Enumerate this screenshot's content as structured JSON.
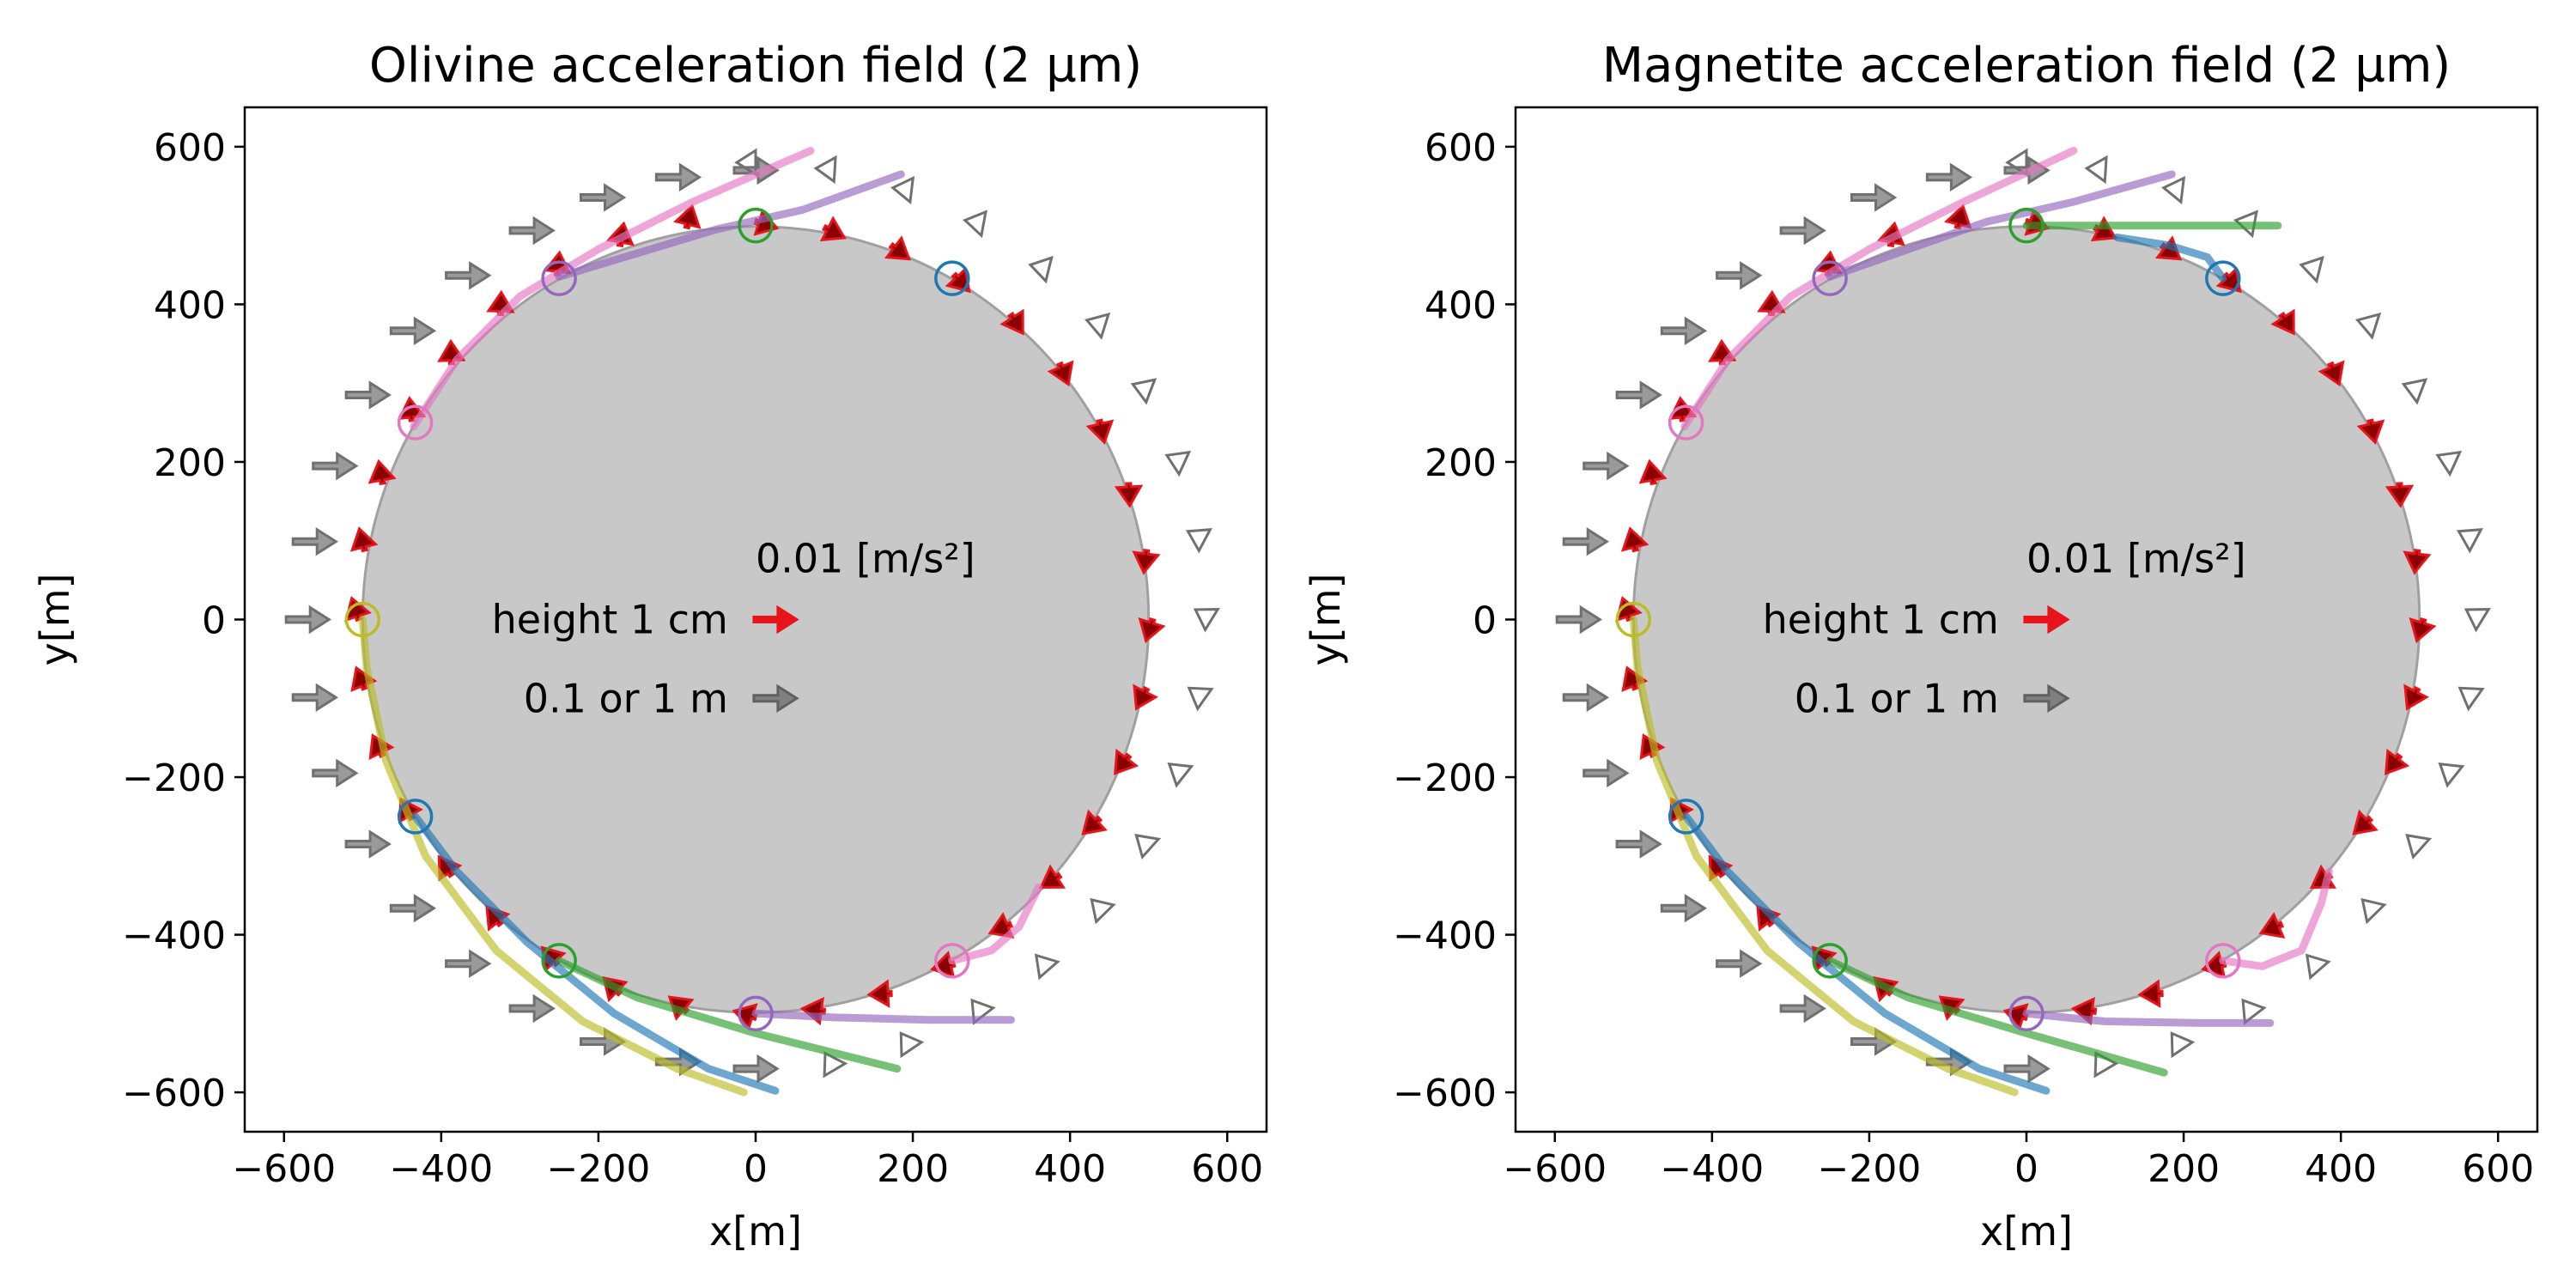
{
  "chart_data": [
    {
      "type": "vector-field",
      "title": "Olivine acceleration field (2 µm)",
      "xlabel": "x[m]",
      "ylabel": "y[m]",
      "xlim": [
        -650,
        650
      ],
      "ylim": [
        -650,
        650
      ],
      "xticks": [
        "−600",
        "−400",
        "−200",
        "0",
        "200",
        "400",
        "600"
      ],
      "yticks": [
        "600",
        "400",
        "200",
        "0",
        "−200",
        "−400",
        "−600"
      ],
      "body": {
        "shape": "circle",
        "center": [
          0,
          0
        ],
        "radius": 500,
        "color": "#c8c8c8"
      },
      "legend": {
        "scale_label": "0.01 [m/s²]",
        "entries": [
          {
            "label": "height 1 cm",
            "color": "#e8141c"
          },
          {
            "label": "0.1 or 1 m",
            "color": "#808080"
          }
        ]
      },
      "trajectories": [
        {
          "color": "#e377c2",
          "points": [
            [
              -435,
              245
            ],
            [
              -380,
              330
            ],
            [
              -300,
              410
            ],
            [
              -200,
              470
            ],
            [
              -80,
              530
            ],
            [
              70,
              595
            ]
          ]
        },
        {
          "color": "#9467bd",
          "points": [
            [
              -250,
              435
            ],
            [
              -150,
              465
            ],
            [
              -50,
              495
            ],
            [
              60,
              520
            ],
            [
              185,
              565
            ]
          ]
        },
        {
          "color": "#9467bd",
          "points": [
            [
              0,
              -500
            ],
            [
              100,
              -505
            ],
            [
              220,
              -508
            ],
            [
              325,
              -508
            ]
          ]
        },
        {
          "color": "#2ca02c",
          "points": [
            [
              -250,
              -433
            ],
            [
              -150,
              -480
            ],
            [
              0,
              -525
            ],
            [
              180,
              -570
            ]
          ]
        },
        {
          "color": "#bcbd22",
          "points": [
            [
              -500,
              0
            ],
            [
              -495,
              -60
            ],
            [
              -470,
              -180
            ],
            [
              -420,
              -300
            ],
            [
              -330,
              -420
            ],
            [
              -220,
              -510
            ],
            [
              -100,
              -570
            ],
            [
              -15,
              -600
            ]
          ]
        },
        {
          "color": "#1f77b4",
          "points": [
            [
              -433,
              -250
            ],
            [
              -380,
              -320
            ],
            [
              -290,
              -410
            ],
            [
              -180,
              -500
            ],
            [
              -60,
              -570
            ],
            [
              25,
              -598
            ]
          ]
        },
        {
          "color": "#e377c2",
          "points": [
            [
              250,
              -433
            ],
            [
              300,
              -420
            ],
            [
              335,
              -390
            ],
            [
              360,
              -340
            ]
          ]
        }
      ],
      "starts": [
        {
          "x": 0,
          "y": 500,
          "color": "#2ca02c"
        },
        {
          "x": 250,
          "y": 433,
          "color": "#1f77b4"
        },
        {
          "x": -250,
          "y": 433,
          "color": "#9467bd"
        },
        {
          "x": -433,
          "y": 250,
          "color": "#e377c2"
        },
        {
          "x": -500,
          "y": 0,
          "color": "#bcbd22"
        },
        {
          "x": -433,
          "y": -250,
          "color": "#1f77b4"
        },
        {
          "x": -250,
          "y": -433,
          "color": "#2ca02c"
        },
        {
          "x": 0,
          "y": -500,
          "color": "#9467bd"
        },
        {
          "x": 250,
          "y": -433,
          "color": "#e377c2"
        }
      ]
    },
    {
      "type": "vector-field",
      "title": "Magnetite acceleration field (2 µm)",
      "xlabel": "x[m]",
      "ylabel": "y[m]",
      "xlim": [
        -650,
        650
      ],
      "ylim": [
        -650,
        650
      ],
      "xticks": [
        "−600",
        "−400",
        "−200",
        "0",
        "200",
        "400",
        "600"
      ],
      "yticks": [
        "600",
        "400",
        "200",
        "0",
        "−200",
        "−400",
        "−600"
      ],
      "body": {
        "shape": "circle",
        "center": [
          0,
          0
        ],
        "radius": 500,
        "color": "#c8c8c8"
      },
      "legend": {
        "scale_label": "0.01 [m/s²]",
        "entries": [
          {
            "label": "height 1 cm",
            "color": "#e8141c"
          },
          {
            "label": "0.1 or 1 m",
            "color": "#808080"
          }
        ]
      },
      "trajectories": [
        {
          "color": "#e377c2",
          "points": [
            [
              -435,
              245
            ],
            [
              -380,
              330
            ],
            [
              -300,
              410
            ],
            [
              -200,
              470
            ],
            [
              -80,
              530
            ],
            [
              60,
              595
            ]
          ]
        },
        {
          "color": "#9467bd",
          "points": [
            [
              -250,
              435
            ],
            [
              -150,
              470
            ],
            [
              -50,
              505
            ],
            [
              60,
              530
            ],
            [
              185,
              565
            ]
          ]
        },
        {
          "color": "#2ca02c",
          "points": [
            [
              0,
              500
            ],
            [
              120,
              500
            ],
            [
              320,
              500
            ]
          ]
        },
        {
          "color": "#1f77b4",
          "points": [
            [
              115,
              485
            ],
            [
              180,
              475
            ],
            [
              230,
              460
            ],
            [
              250,
              433
            ]
          ]
        },
        {
          "color": "#9467bd",
          "points": [
            [
              0,
              -500
            ],
            [
              100,
              -510
            ],
            [
              220,
              -512
            ],
            [
              310,
              -512
            ]
          ]
        },
        {
          "color": "#2ca02c",
          "points": [
            [
              -250,
              -433
            ],
            [
              -150,
              -480
            ],
            [
              0,
              -525
            ],
            [
              175,
              -575
            ]
          ]
        },
        {
          "color": "#bcbd22",
          "points": [
            [
              -500,
              0
            ],
            [
              -495,
              -60
            ],
            [
              -470,
              -180
            ],
            [
              -420,
              -300
            ],
            [
              -330,
              -420
            ],
            [
              -220,
              -510
            ],
            [
              -100,
              -570
            ],
            [
              -15,
              -600
            ]
          ]
        },
        {
          "color": "#1f77b4",
          "points": [
            [
              -433,
              -250
            ],
            [
              -380,
              -320
            ],
            [
              -290,
              -410
            ],
            [
              -180,
              -500
            ],
            [
              -60,
              -570
            ],
            [
              25,
              -598
            ]
          ]
        },
        {
          "color": "#e377c2",
          "points": [
            [
              250,
              -433
            ],
            [
              300,
              -440
            ],
            [
              350,
              -420
            ],
            [
              375,
              -360
            ],
            [
              385,
              -320
            ]
          ]
        }
      ],
      "starts": [
        {
          "x": 0,
          "y": 500,
          "color": "#2ca02c"
        },
        {
          "x": 250,
          "y": 433,
          "color": "#1f77b4"
        },
        {
          "x": -250,
          "y": 433,
          "color": "#9467bd"
        },
        {
          "x": -433,
          "y": 250,
          "color": "#e377c2"
        },
        {
          "x": -500,
          "y": 0,
          "color": "#bcbd22"
        },
        {
          "x": -433,
          "y": -250,
          "color": "#1f77b4"
        },
        {
          "x": -250,
          "y": -433,
          "color": "#2ca02c"
        },
        {
          "x": 0,
          "y": -500,
          "color": "#9467bd"
        },
        {
          "x": 250,
          "y": -433,
          "color": "#e377c2"
        }
      ]
    }
  ]
}
